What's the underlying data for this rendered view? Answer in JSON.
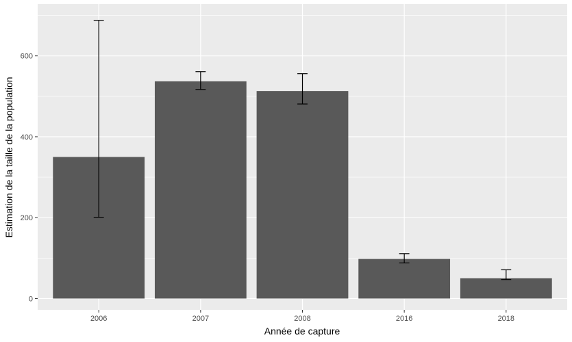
{
  "chart_data": {
    "type": "bar",
    "title": "",
    "xlabel": "Année de capture",
    "ylabel": "Estimation de la taille de la population",
    "categories": [
      "2006",
      "2007",
      "2008",
      "2016",
      "2018"
    ],
    "values": [
      350,
      537,
      513,
      98,
      50
    ],
    "error_bars": {
      "lower": [
        201,
        517,
        481,
        88,
        47
      ],
      "upper": [
        688,
        561,
        556,
        111,
        71
      ]
    },
    "ylim": [
      -28,
      728
    ],
    "yticks": [
      0,
      200,
      400,
      600
    ],
    "grid": true,
    "legend": "none",
    "colors": {
      "panel_background": "#ebebeb",
      "grid_major": "#ffffff",
      "bar_fill": "#595959",
      "error_bar": "#000000",
      "tick_label": "#4d4d4d"
    }
  }
}
